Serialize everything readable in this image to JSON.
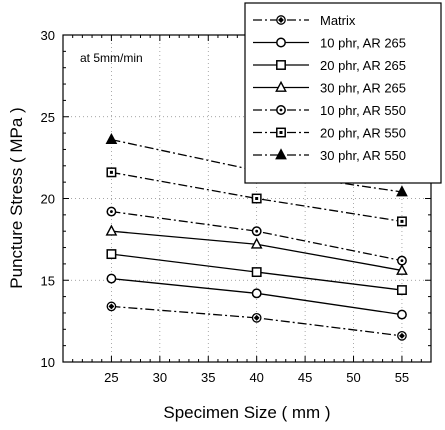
{
  "chart_data": {
    "type": "line",
    "annotation": "at 5mm/min",
    "xlabel": "Specimen Size ( mm )",
    "ylabel": "Puncture Stress ( MPa )",
    "xlim": [
      20,
      58
    ],
    "ylim": [
      10,
      30
    ],
    "xticks": [
      25,
      30,
      35,
      40,
      45,
      50,
      55
    ],
    "yticks": [
      10,
      15,
      20,
      25,
      30
    ],
    "grid": true,
    "legend_position": "top-right",
    "x": [
      25,
      40,
      55
    ],
    "series": [
      {
        "name": "Matrix",
        "values": [
          13.4,
          12.7,
          11.6
        ],
        "line": "dashdot",
        "marker": "diamond-open",
        "color": "#000000"
      },
      {
        "name": "10 phr, AR 265",
        "values": [
          15.1,
          14.2,
          12.9
        ],
        "line": "solid",
        "marker": "circle-open",
        "color": "#000000"
      },
      {
        "name": "20 phr, AR 265",
        "values": [
          16.6,
          15.5,
          14.4
        ],
        "line": "solid",
        "marker": "square-open",
        "color": "#000000"
      },
      {
        "name": "30 phr, AR 265",
        "values": [
          18.0,
          17.2,
          15.6
        ],
        "line": "solid",
        "marker": "triangle-open",
        "color": "#000000"
      },
      {
        "name": "10 phr, AR 550",
        "values": [
          19.2,
          18.0,
          16.2
        ],
        "line": "dashdot",
        "marker": "circle-dot",
        "color": "#000000"
      },
      {
        "name": "20 phr, AR 550",
        "values": [
          21.6,
          20.0,
          18.6
        ],
        "line": "dashdot",
        "marker": "square-dot",
        "color": "#000000"
      },
      {
        "name": "30 phr, AR 550",
        "values": [
          23.6,
          21.7,
          20.4
        ],
        "line": "dashdot",
        "marker": "triangle-filled",
        "color": "#000000"
      }
    ]
  }
}
